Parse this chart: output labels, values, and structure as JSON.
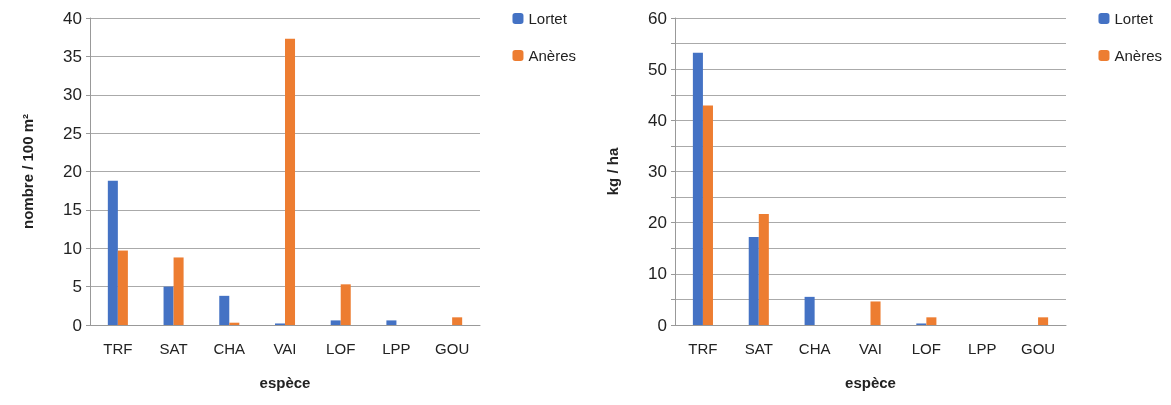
{
  "chart_data": [
    {
      "type": "bar",
      "xlabel": "espèce",
      "ylabel": "nombre / 100 m²",
      "categories": [
        "TRF",
        "SAT",
        "CHA",
        "VAI",
        "LOF",
        "LPP",
        "GOU"
      ],
      "series": [
        {
          "name": "Lortet",
          "color": "#4472c4",
          "values": [
            18.8,
            5.0,
            3.8,
            0.2,
            0.6,
            0.6,
            0
          ]
        },
        {
          "name": "Anères",
          "color": "#ed7d31",
          "values": [
            9.7,
            8.8,
            0.3,
            37.3,
            5.3,
            0,
            1.0
          ]
        }
      ],
      "ylim": [
        0,
        40
      ],
      "yticks": [
        0,
        5,
        10,
        15,
        20,
        25,
        30,
        35,
        40
      ],
      "grid": "y",
      "legend": "top right"
    },
    {
      "type": "bar",
      "xlabel": "espèce",
      "ylabel": "kg / ha",
      "categories": [
        "TRF",
        "SAT",
        "CHA",
        "VAI",
        "LOF",
        "LPP",
        "GOU"
      ],
      "series": [
        {
          "name": "Lortet",
          "color": "#4472c4",
          "values": [
            53.2,
            17.2,
            5.5,
            0,
            0.3,
            0,
            0
          ]
        },
        {
          "name": "Anères",
          "color": "#ed7d31",
          "values": [
            42.9,
            21.7,
            0,
            4.6,
            1.5,
            0,
            1.5
          ]
        }
      ],
      "ylim": [
        0,
        60
      ],
      "yticks": [
        0,
        {
          "value": 5,
          "label": null
        },
        10,
        {
          "value": 15,
          "label": null
        },
        20,
        {
          "value": 25,
          "label": null
        },
        30,
        {
          "value": 35,
          "label": null
        },
        40,
        {
          "value": 45,
          "label": null
        },
        50,
        {
          "value": 55,
          "label": null
        },
        60
      ],
      "grid": "y",
      "legend": "top right"
    }
  ]
}
